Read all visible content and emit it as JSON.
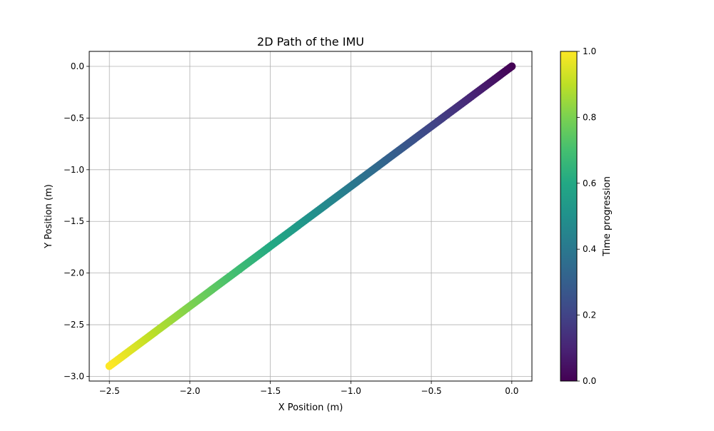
{
  "chart_data": {
    "type": "scatter",
    "title": "2D Path of the IMU",
    "xlabel": "X Position (m)",
    "ylabel": "Y Position (m)",
    "xlim": [
      -2.625,
      0.125
    ],
    "ylim": [
      -3.045,
      0.145
    ],
    "xticks": [
      -2.5,
      -2.0,
      -1.5,
      -1.0,
      -0.5,
      0.0
    ],
    "xtick_labels": [
      "−2.5",
      "−2.0",
      "−1.5",
      "−1.0",
      "−0.5",
      "0.0"
    ],
    "yticks": [
      0.0,
      -0.5,
      -1.0,
      -1.5,
      -2.0,
      -2.5,
      -3.0
    ],
    "ytick_labels": [
      "0.0",
      "−0.5",
      "−1.0",
      "−1.5",
      "−2.0",
      "−2.5",
      "−3.0"
    ],
    "grid": true,
    "series": [
      {
        "start": [
          0.0,
          0.0
        ],
        "end": [
          -2.5,
          -2.9
        ],
        "t_start": 0.0,
        "t_end": 1.0,
        "point_count": 240
      }
    ],
    "colorbar": {
      "label": "Time progression",
      "colormap": "viridis",
      "range": [
        0.0,
        1.0
      ],
      "ticks": [
        0.0,
        0.2,
        0.4,
        0.6,
        0.8,
        1.0
      ],
      "tick_labels": [
        "0.0",
        "0.2",
        "0.4",
        "0.6",
        "0.8",
        "1.0"
      ]
    }
  }
}
